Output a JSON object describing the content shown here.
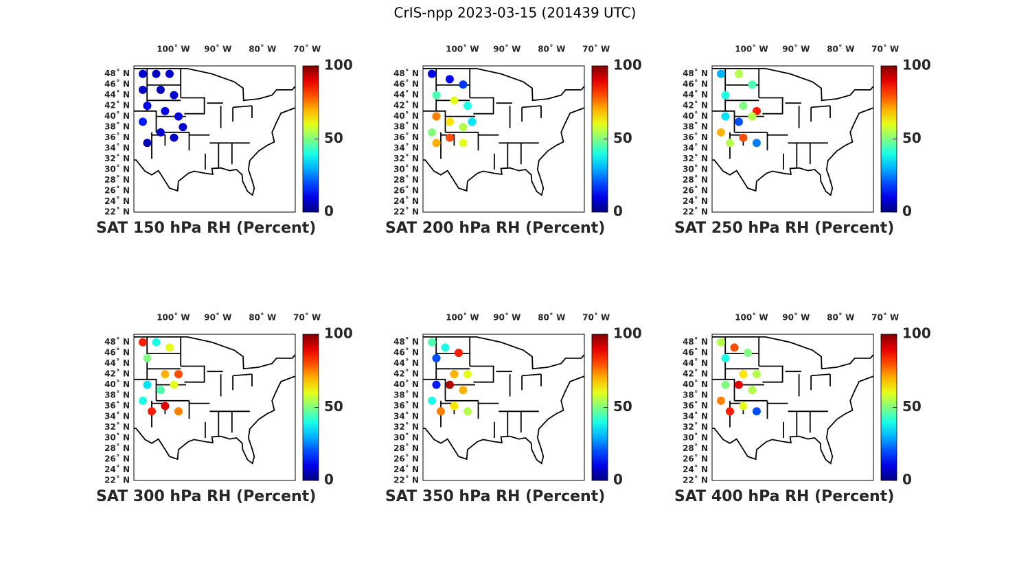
{
  "title": "CrIS-npp 2023-03-15 (201439 UTC)",
  "lonlim": [
    -107,
    -70.8
  ],
  "latlim": [
    22,
    49.5
  ],
  "lon_ticks": [
    {
      "value": -100,
      "label": "100˚ W"
    },
    {
      "value": -90,
      "label": "90˚ W"
    },
    {
      "value": -80,
      "label": "80˚ W"
    },
    {
      "value": -70,
      "label": "70˚ W"
    }
  ],
  "lat_ticks": [
    {
      "value": 22,
      "label": "22˚ N"
    },
    {
      "value": 24,
      "label": "24˚ N"
    },
    {
      "value": 26,
      "label": "26˚ N"
    },
    {
      "value": 28,
      "label": "28˚ N"
    },
    {
      "value": 30,
      "label": "30˚ N"
    },
    {
      "value": 32,
      "label": "32˚ N"
    },
    {
      "value": 34,
      "label": "34˚ N"
    },
    {
      "value": 36,
      "label": "36˚ N"
    },
    {
      "value": 38,
      "label": "38˚ N"
    },
    {
      "value": 40,
      "label": "40˚ N"
    },
    {
      "value": 42,
      "label": "42˚ N"
    },
    {
      "value": 44,
      "label": "44˚ N"
    },
    {
      "value": 46,
      "label": "46˚ N"
    },
    {
      "value": 48,
      "label": "48˚ N"
    }
  ],
  "colorbar": {
    "lim": [
      0,
      100
    ],
    "ticks": [
      0,
      50,
      100
    ],
    "colormap": "jet"
  },
  "panels": [
    {
      "label": "SAT 150 hPa RH (Percent)",
      "points": [
        [
          -105,
          48,
          8
        ],
        [
          -102,
          48,
          6
        ],
        [
          -99,
          48,
          8
        ],
        [
          -105,
          45,
          7
        ],
        [
          -101,
          45,
          6
        ],
        [
          -98,
          44,
          8
        ],
        [
          -104,
          42,
          12
        ],
        [
          -100,
          41,
          10
        ],
        [
          -97,
          40,
          9
        ],
        [
          -105,
          39,
          15
        ],
        [
          -101,
          37,
          8
        ],
        [
          -98,
          36,
          7
        ],
        [
          -104,
          35,
          6
        ],
        [
          -96,
          38,
          8
        ]
      ]
    },
    {
      "label": "SAT 200 hPa RH (Percent)",
      "points": [
        [
          -105,
          48,
          10
        ],
        [
          -101,
          47,
          12
        ],
        [
          -98,
          46,
          18
        ],
        [
          -104,
          44,
          45
        ],
        [
          -100,
          43,
          60
        ],
        [
          -97,
          42,
          40
        ],
        [
          -104,
          40,
          75
        ],
        [
          -101,
          39,
          65
        ],
        [
          -98,
          38,
          55
        ],
        [
          -105,
          37,
          50
        ],
        [
          -101,
          36,
          80
        ],
        [
          -98,
          35,
          60
        ],
        [
          -96,
          39,
          35
        ],
        [
          -104,
          35,
          70
        ]
      ]
    },
    {
      "label": "SAT 250 hPa RH (Percent)",
      "points": [
        [
          -105,
          48,
          30
        ],
        [
          -101,
          48,
          55
        ],
        [
          -98,
          46,
          45
        ],
        [
          -104,
          44,
          40
        ],
        [
          -100,
          42,
          50
        ],
        [
          -97,
          41,
          85
        ],
        [
          -104,
          40,
          35
        ],
        [
          -101,
          39,
          20
        ],
        [
          -98,
          40,
          55
        ],
        [
          -105,
          37,
          70
        ],
        [
          -100,
          36,
          80
        ],
        [
          -97,
          35,
          25
        ],
        [
          -103,
          35,
          55
        ]
      ]
    },
    {
      "label": "SAT 300 hPa RH (Percent)",
      "points": [
        [
          -105,
          48,
          85
        ],
        [
          -102,
          48,
          40
        ],
        [
          -99,
          47,
          60
        ],
        [
          -104,
          45,
          50
        ],
        [
          -100,
          42,
          70
        ],
        [
          -97,
          42,
          80
        ],
        [
          -104,
          40,
          35
        ],
        [
          -101,
          39,
          45
        ],
        [
          -98,
          40,
          60
        ],
        [
          -105,
          37,
          40
        ],
        [
          -100,
          36,
          90
        ],
        [
          -97,
          35,
          75
        ],
        [
          -103,
          35,
          85
        ]
      ]
    },
    {
      "label": "SAT 350 hPa RH (Percent)",
      "points": [
        [
          -105,
          48,
          45
        ],
        [
          -102,
          47,
          40
        ],
        [
          -99,
          46,
          85
        ],
        [
          -104,
          45,
          20
        ],
        [
          -100,
          42,
          70
        ],
        [
          -97,
          42,
          60
        ],
        [
          -104,
          40,
          15
        ],
        [
          -101,
          40,
          95
        ],
        [
          -98,
          39,
          70
        ],
        [
          -105,
          37,
          40
        ],
        [
          -100,
          36,
          65
        ],
        [
          -97,
          35,
          55
        ],
        [
          -103,
          35,
          75
        ]
      ]
    },
    {
      "label": "SAT 400 hPa RH (Percent)",
      "points": [
        [
          -105,
          48,
          55
        ],
        [
          -102,
          47,
          80
        ],
        [
          -99,
          46,
          50
        ],
        [
          -104,
          45,
          40
        ],
        [
          -100,
          42,
          65
        ],
        [
          -97,
          42,
          55
        ],
        [
          -104,
          40,
          50
        ],
        [
          -101,
          40,
          90
        ],
        [
          -98,
          39,
          55
        ],
        [
          -105,
          37,
          75
        ],
        [
          -100,
          36,
          60
        ],
        [
          -97,
          35,
          20
        ],
        [
          -103,
          35,
          85
        ]
      ]
    }
  ]
}
